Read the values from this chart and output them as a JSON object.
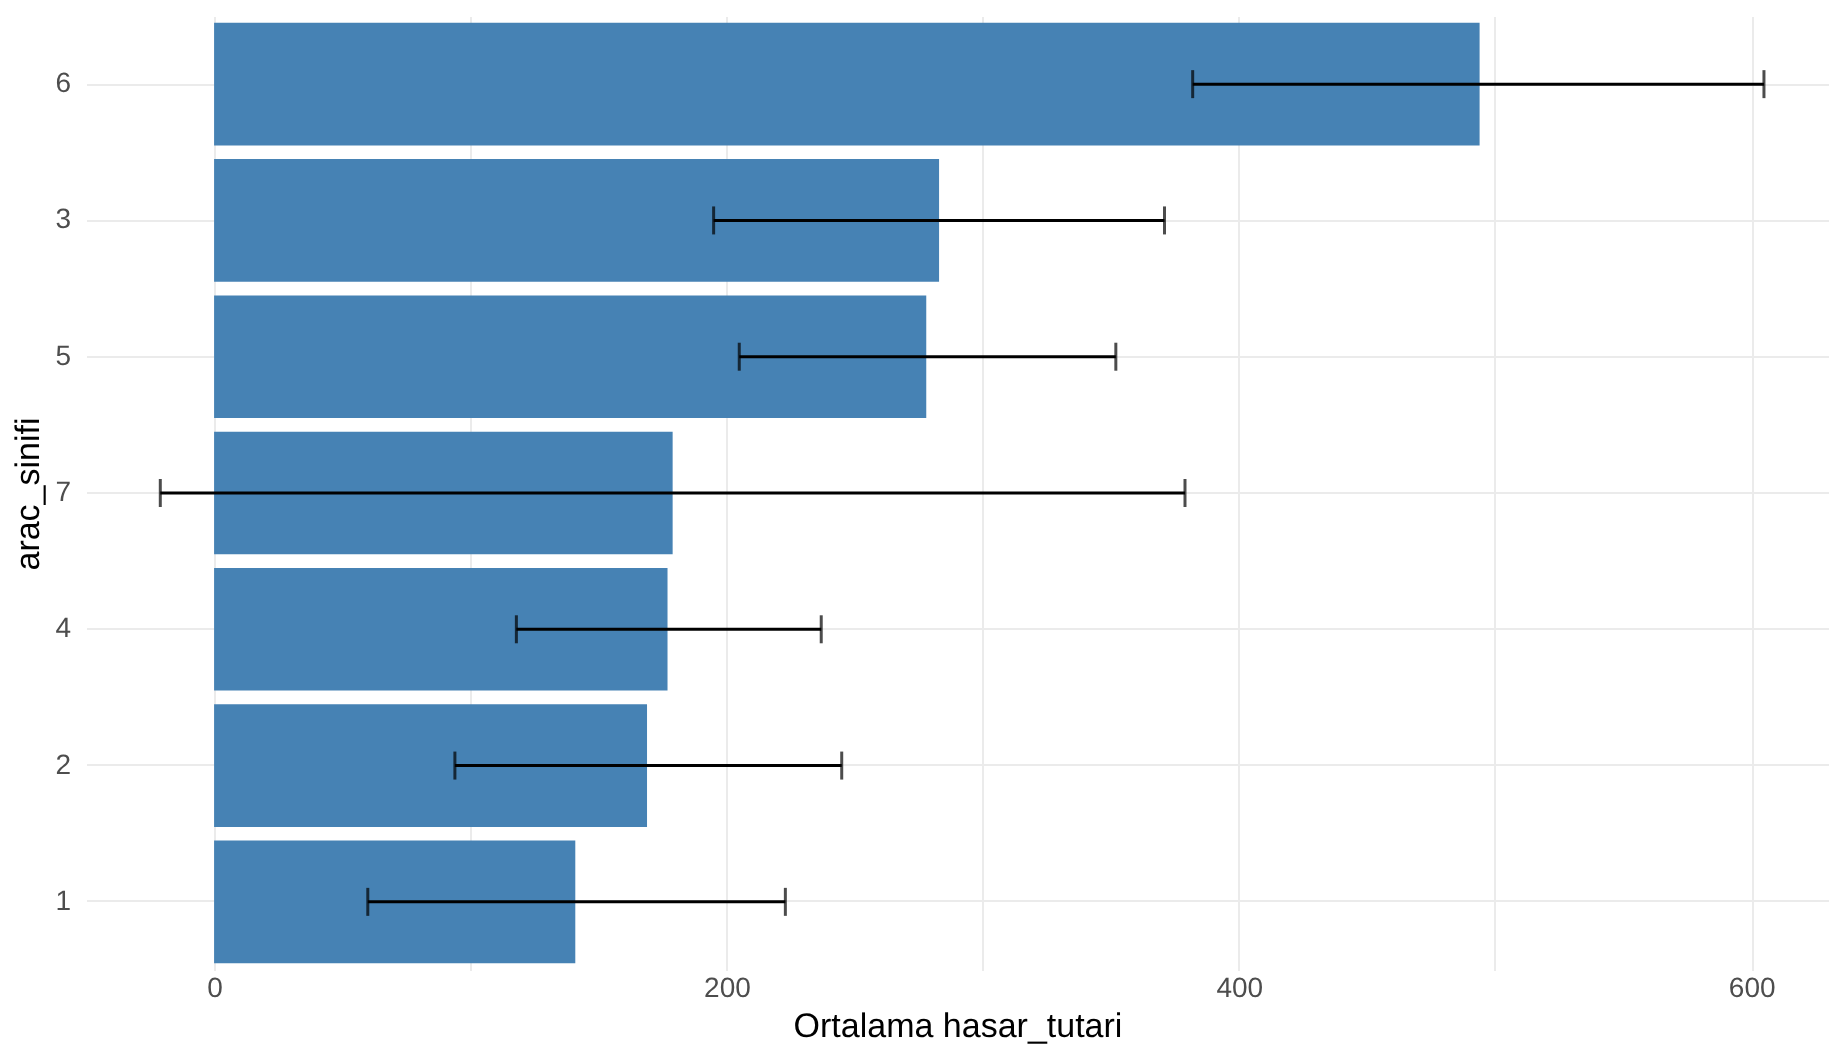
{
  "chart_data": {
    "type": "bar",
    "orientation": "horizontal",
    "xlabel": "Ortalama hasar_tutari",
    "ylabel": "arac_sinifi",
    "categories": [
      "6",
      "3",
      "5",
      "7",
      "4",
      "2",
      "1"
    ],
    "values": [
      494,
      283,
      278,
      179,
      177,
      169,
      141
    ],
    "errors": [
      [
        382,
        605
      ],
      [
        195,
        371
      ],
      [
        205,
        352
      ],
      [
        -21,
        379
      ],
      [
        118,
        237
      ],
      [
        94,
        245
      ],
      [
        60,
        223
      ]
    ],
    "color": "#4682b4",
    "xlim": [
      -50,
      630
    ],
    "xticks": [
      0,
      {
        "value": 100,
        "label": null
      },
      200,
      {
        "value": 300,
        "label": null
      },
      400,
      {
        "value": 500,
        "label": null
      },
      600
    ],
    "grid": true
  }
}
